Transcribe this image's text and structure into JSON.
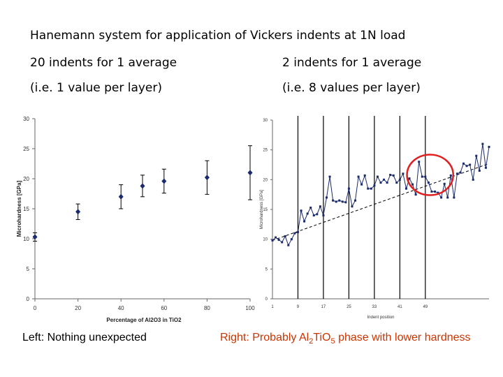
{
  "slide": {
    "title": "Hanemann system for application of Vickers indents at 1N load",
    "left_heading_1": "20 indents for 1 average",
    "left_heading_2": "(i.e. 1 value per layer)",
    "right_heading_1": "2 indents for 1 average",
    "right_heading_2": "(i.e. 8 values per layer)",
    "left_caption": "Left: Nothing unexpected",
    "right_caption": {
      "prefix": "Right: Probably Al",
      "sub1": "2",
      "mid": "TiO",
      "sub2": "5",
      "suffix": " phase with lower hardness",
      "color": "#cc3300"
    }
  },
  "chart_data": [
    {
      "type": "scatter",
      "title": "",
      "xlabel": "Percentage of Al2O3 in TiO2",
      "ylabel": "Microhardness [GPa]",
      "xlim": [
        0,
        100
      ],
      "ylim": [
        0,
        30
      ],
      "xticks": [
        "0",
        "20",
        "40",
        "60",
        "80",
        "100"
      ],
      "yticks": [
        "0",
        "5",
        "10",
        "15",
        "20",
        "25",
        "30"
      ],
      "marker_color": "#1a2a6c",
      "points": [
        {
          "x": 0,
          "y": 10.3,
          "err": 0.7
        },
        {
          "x": 20,
          "y": 14.5,
          "err": 1.3
        },
        {
          "x": 40,
          "y": 17.0,
          "err": 2.0
        },
        {
          "x": 50,
          "y": 18.8,
          "err": 1.8
        },
        {
          "x": 60,
          "y": 19.6,
          "err": 2.0
        },
        {
          "x": 80,
          "y": 20.2,
          "err": 2.8
        },
        {
          "x": 100,
          "y": 21.0,
          "err": 4.5
        }
      ]
    },
    {
      "type": "line",
      "title": "",
      "xlabel": "Indent position",
      "ylabel": "Microhardness [GPa]",
      "ylim": [
        0,
        30
      ],
      "yticks": [
        "0",
        "5",
        "10",
        "15",
        "20",
        "25",
        "30"
      ],
      "xtick_labels": [
        "1",
        "9",
        "17",
        "25",
        "33",
        "41",
        "49"
      ],
      "layer_boundaries": [
        9,
        17,
        25,
        33,
        41,
        49
      ],
      "trendline": {
        "start": [
          1,
          9.8
        ],
        "end": [
          57,
          22.7
        ]
      },
      "line_color": "#1a2a6c",
      "highlight": {
        "from": 45,
        "to": 56,
        "color": "#e02020"
      },
      "values": [
        9.8,
        10.3,
        9.9,
        9.5,
        10.5,
        9.0,
        10.0,
        11.0,
        11.2,
        14.8,
        13.0,
        14.3,
        15.3,
        14.0,
        14.2,
        15.5,
        14.0,
        17.0,
        20.5,
        16.5,
        16.3,
        16.5,
        16.3,
        16.2,
        18.5,
        15.5,
        16.5,
        20.5,
        19.2,
        20.7,
        18.5,
        18.5,
        19.0,
        20.5,
        19.5,
        20.0,
        19.5,
        20.8,
        20.7,
        19.5,
        20.0,
        21.0,
        18.5,
        20.2,
        19.2,
        17.5,
        23.0,
        20.5,
        20.5,
        19.5,
        18.0,
        18.0,
        17.8,
        17.0,
        19.3,
        17.0,
        20.7,
        17.0,
        21.0,
        21.2,
        22.7,
        22.3,
        22.5,
        20.0,
        24.0,
        21.5,
        26.0,
        22.0,
        25.5
      ]
    }
  ]
}
